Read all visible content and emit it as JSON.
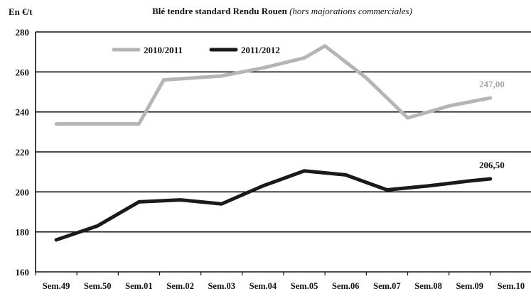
{
  "chart_data": {
    "type": "line",
    "title": "Blé tendre standard Rendu Rouen",
    "subtitle": "(hors majorations commerciales)",
    "ylabel": "En €/t",
    "xlabel": "",
    "categories": [
      "Sem.49",
      "Sem.50",
      "Sem.01",
      "Sem.02",
      "Sem.03",
      "Sem.04",
      "Sem.05",
      "Sem.06",
      "Sem.07",
      "Sem.08",
      "Sem.09",
      "Sem.10"
    ],
    "ylim": [
      160,
      280
    ],
    "yticks": [
      160,
      180,
      200,
      220,
      240,
      260,
      280
    ],
    "grid": true,
    "legend_position": "top-left",
    "series": [
      {
        "name": "2010/2011",
        "color": "#b5b5b5",
        "points": [
          {
            "x": 0,
            "y": 234
          },
          {
            "x": 1,
            "y": 234
          },
          {
            "x": 2,
            "y": 234
          },
          {
            "x": 2.6,
            "y": 256
          },
          {
            "x": 4,
            "y": 258
          },
          {
            "x": 5,
            "y": 262
          },
          {
            "x": 6,
            "y": 267
          },
          {
            "x": 6.5,
            "y": 273
          },
          {
            "x": 7.5,
            "y": 257
          },
          {
            "x": 8.5,
            "y": 237
          },
          {
            "x": 9.5,
            "y": 243
          },
          {
            "x": 10.5,
            "y": 247
          }
        ],
        "end_label": "247,00"
      },
      {
        "name": "2011/2012",
        "color": "#1a1a1a",
        "points": [
          {
            "x": 0,
            "y": 176
          },
          {
            "x": 1,
            "y": 183
          },
          {
            "x": 2,
            "y": 195
          },
          {
            "x": 3,
            "y": 196
          },
          {
            "x": 4,
            "y": 194
          },
          {
            "x": 5,
            "y": 203
          },
          {
            "x": 6,
            "y": 210.5
          },
          {
            "x": 7,
            "y": 208.5
          },
          {
            "x": 8,
            "y": 201
          },
          {
            "x": 9,
            "y": 203
          },
          {
            "x": 10,
            "y": 205.5
          },
          {
            "x": 10.5,
            "y": 206.5
          }
        ],
        "end_label": "206,50"
      }
    ]
  }
}
